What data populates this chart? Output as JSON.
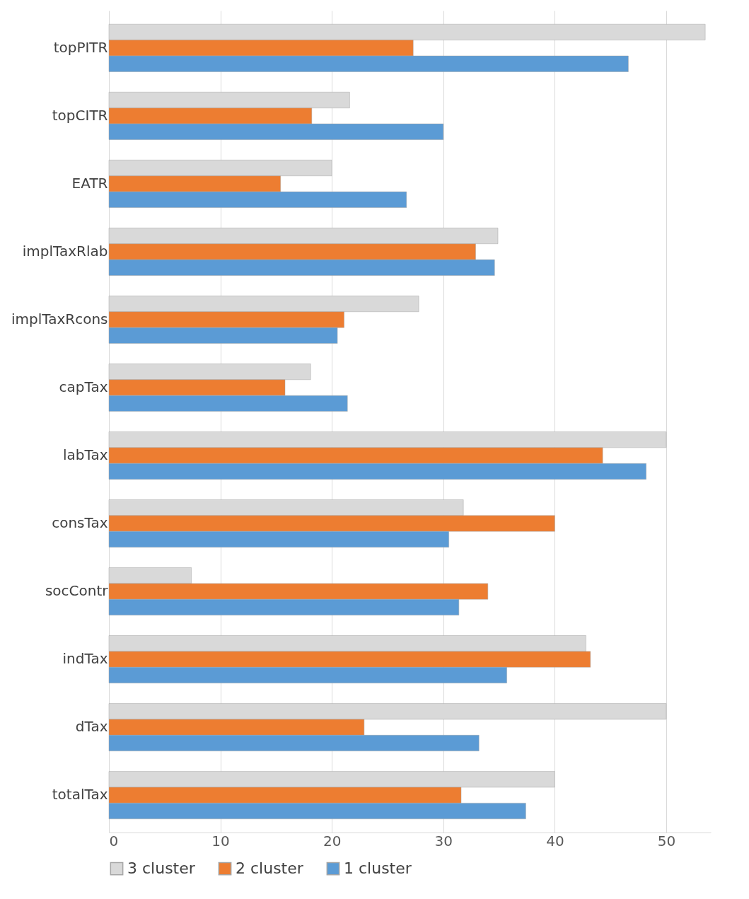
{
  "chart_data": {
    "type": "bar",
    "orientation": "horizontal",
    "categories": [
      "topPITR",
      "topCITR",
      "EATR",
      "implTaxRlab",
      "implTaxRcons",
      "capTax",
      "labTax",
      "consTax",
      "socContr",
      "indTax",
      "dTax",
      "totalTax"
    ],
    "series": [
      {
        "name": "3 cluster",
        "color": "#d9d9d9",
        "values": [
          53.5,
          21.6,
          20.0,
          34.9,
          27.8,
          18.1,
          50.0,
          31.8,
          7.4,
          42.8,
          50.0,
          40.0
        ]
      },
      {
        "name": "2 cluster",
        "color": "#ed7d31",
        "values": [
          27.3,
          18.2,
          15.4,
          32.9,
          21.1,
          15.8,
          44.3,
          40.0,
          34.0,
          43.2,
          22.9,
          31.6
        ]
      },
      {
        "name": "1 cluster",
        "color": "#5b9bd5",
        "values": [
          46.6,
          30.0,
          26.7,
          34.6,
          20.5,
          21.4,
          48.2,
          30.5,
          31.4,
          35.7,
          33.2,
          37.4
        ]
      }
    ],
    "xlim": [
      0,
      54
    ],
    "xticks": [
      0,
      10,
      20,
      30,
      40,
      50
    ],
    "grid": "x",
    "legend": "bottom"
  }
}
